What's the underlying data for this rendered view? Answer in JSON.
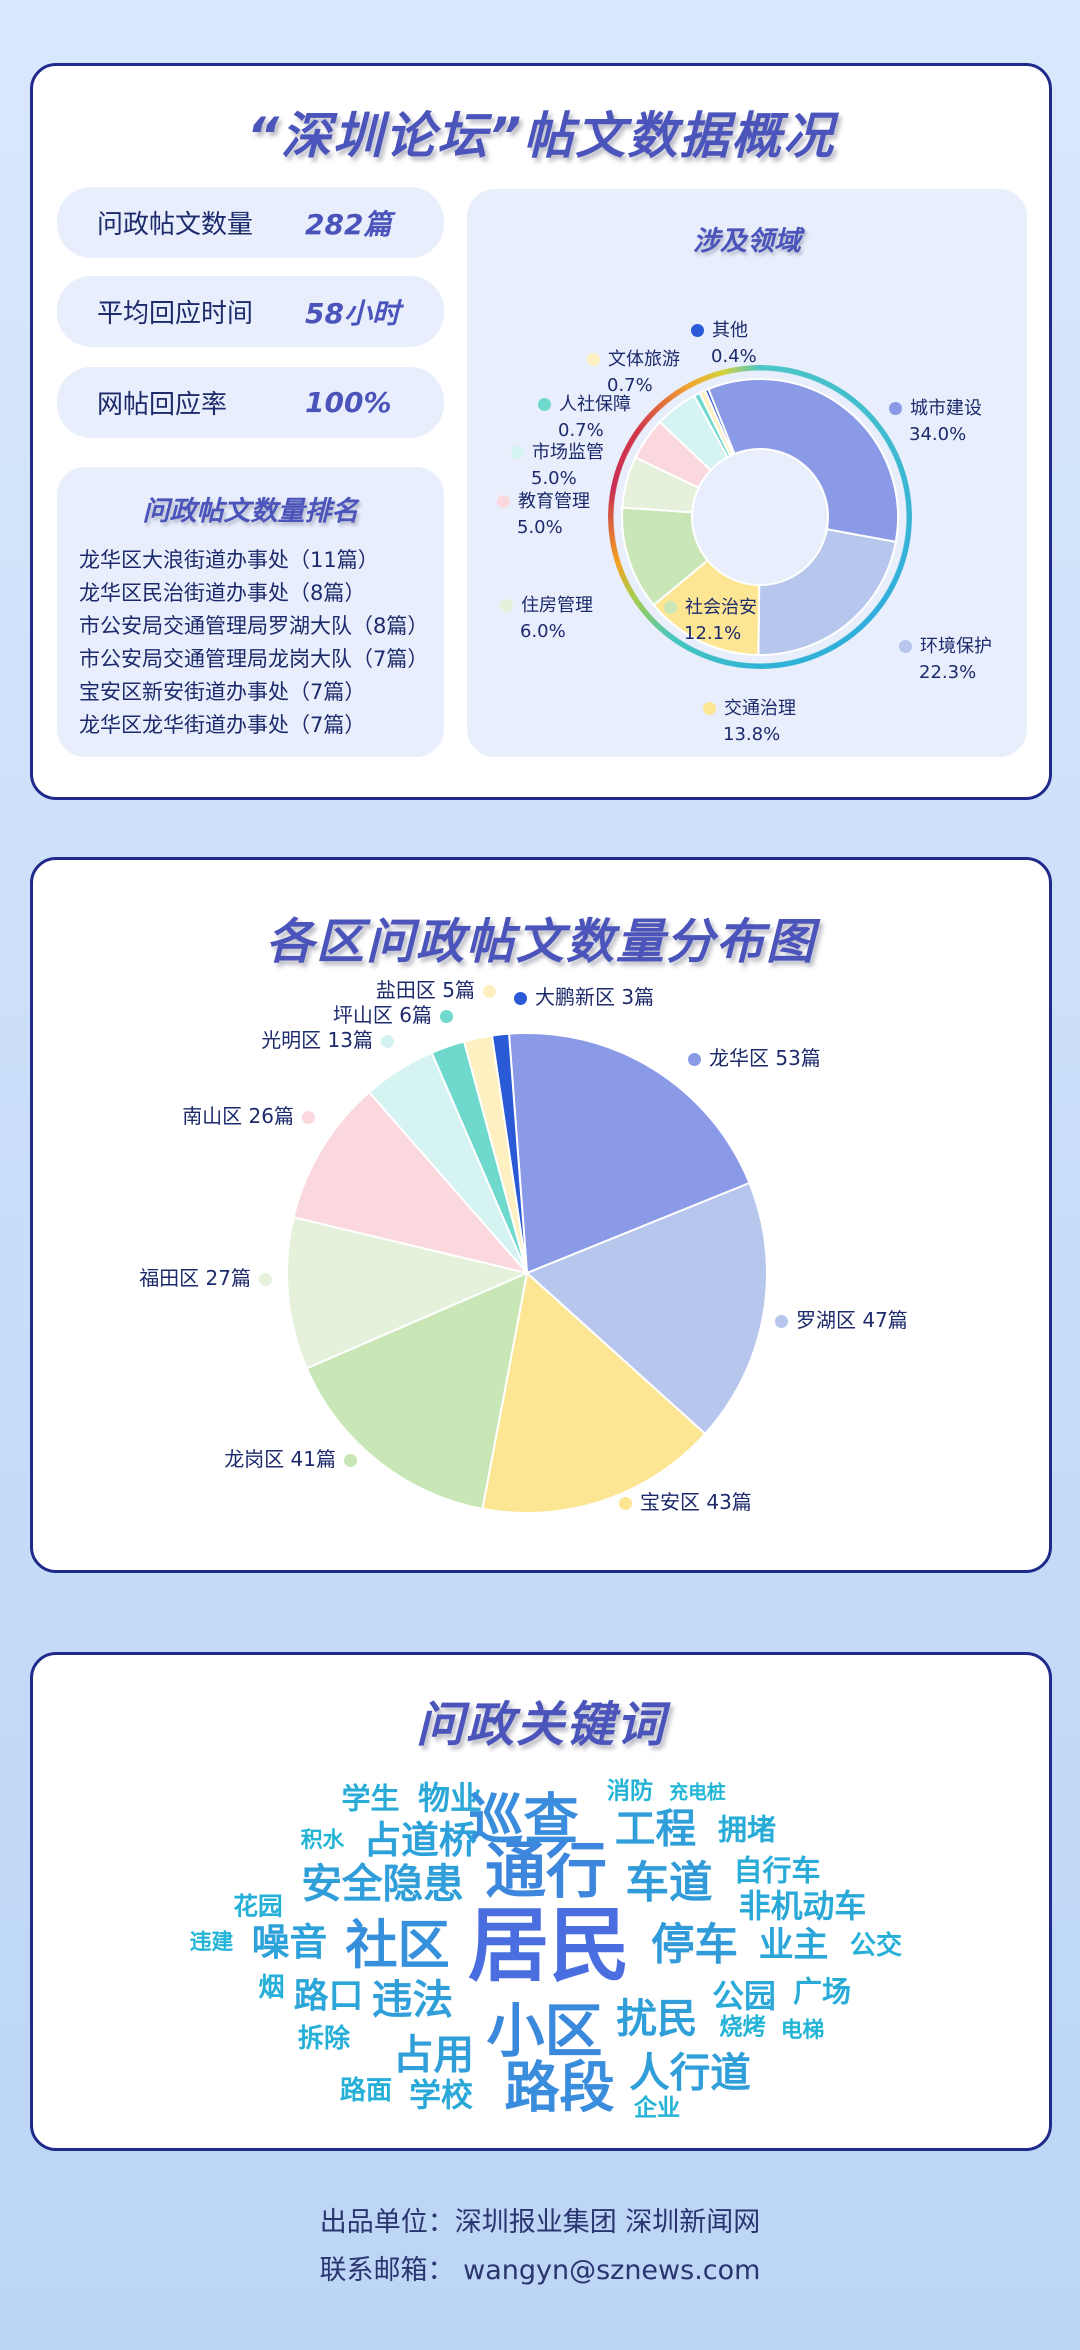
{
  "overview": {
    "title": "“深圳论坛”帖文数据概况",
    "stats": [
      {
        "label": "问政帖文数量",
        "value": "282篇"
      },
      {
        "label": "平均回应时间",
        "value": "58小时"
      },
      {
        "label": "网帖回应率",
        "value": "100%"
      }
    ],
    "ranking_title": "问政帖文数量排名",
    "ranking": [
      "龙华区大浪街道办事处（11篇）",
      "龙华区民治街道办事处（8篇）",
      "市公安局交通管理局罗湖大队（8篇）",
      "市公安局交通管理局龙岗大队（7篇）",
      "宝安区新安街道办事处（7篇）",
      "龙华区龙华街道办事处（7篇）"
    ]
  },
  "chart_data": [
    {
      "type": "pie",
      "variant": "donut",
      "title": "涉及领域",
      "categories": [
        "城市建设",
        "环境保护",
        "交通治理",
        "社会治安",
        "住房管理",
        "教育管理",
        "市场监管",
        "人社保障",
        "文体旅游",
        "其他"
      ],
      "values": [
        34.0,
        22.3,
        13.8,
        12.1,
        6.0,
        5.0,
        5.0,
        0.7,
        0.7,
        0.4
      ],
      "labels": [
        "34.0%",
        "22.3%",
        "13.8%",
        "12.1%",
        "6.0%",
        "5.0%",
        "5.0%",
        "0.7%",
        "0.7%",
        "0.4%"
      ],
      "colors": [
        "#8b9ae6",
        "#b6c6ec",
        "#fde693",
        "#c9e6b6",
        "#e5f1db",
        "#fbd7de",
        "#d5f3f1",
        "#6fd9cd",
        "#fff0c2",
        "#2b5ad6"
      ]
    },
    {
      "type": "pie",
      "title": "各区问政帖文数量分布图",
      "categories": [
        "龙华区",
        "罗湖区",
        "宝安区",
        "龙岗区",
        "福田区",
        "南山区",
        "光明区",
        "坪山区",
        "盐田区",
        "大鹏新区"
      ],
      "values": [
        53,
        47,
        43,
        41,
        27,
        26,
        13,
        6,
        5,
        3
      ],
      "labels": [
        "龙华区 53篇",
        "罗湖区 47篇",
        "宝安区 43篇",
        "龙岗区 41篇",
        "福田区 27篇",
        "南山区 26篇",
        "光明区 13篇",
        "坪山区 6篇",
        "盐田区 5篇",
        "大鹏新区 3篇"
      ],
      "colors": [
        "#8b9ae6",
        "#b6c6ec",
        "#fde693",
        "#c9e6b6",
        "#e5f1db",
        "#fbd7de",
        "#d5f3f1",
        "#6fd9cd",
        "#fff0c2",
        "#2b5ad6"
      ]
    }
  ],
  "keywords": {
    "title": "问政关键词",
    "words": [
      "学生",
      "物业",
      "巡查",
      "消防",
      "充电桩",
      "积水",
      "占道桥",
      "工程",
      "拥堵",
      "安全隐患",
      "通行",
      "车道",
      "自行车",
      "花园",
      "非机动车",
      "违建",
      "噪音",
      "社区",
      "居民",
      "停车",
      "业主",
      "公交",
      "烟",
      "路口",
      "违法",
      "公园",
      "广场",
      "拆除",
      "小区",
      "扰民",
      "烧烤",
      "电梯",
      "占用",
      "路段",
      "人行道",
      "路面",
      "学校",
      "企业"
    ]
  },
  "footer": {
    "producer": "出品单位：深圳报业集团 深圳新闻网",
    "email": "联系邮箱： wangyn@sznews.com"
  }
}
